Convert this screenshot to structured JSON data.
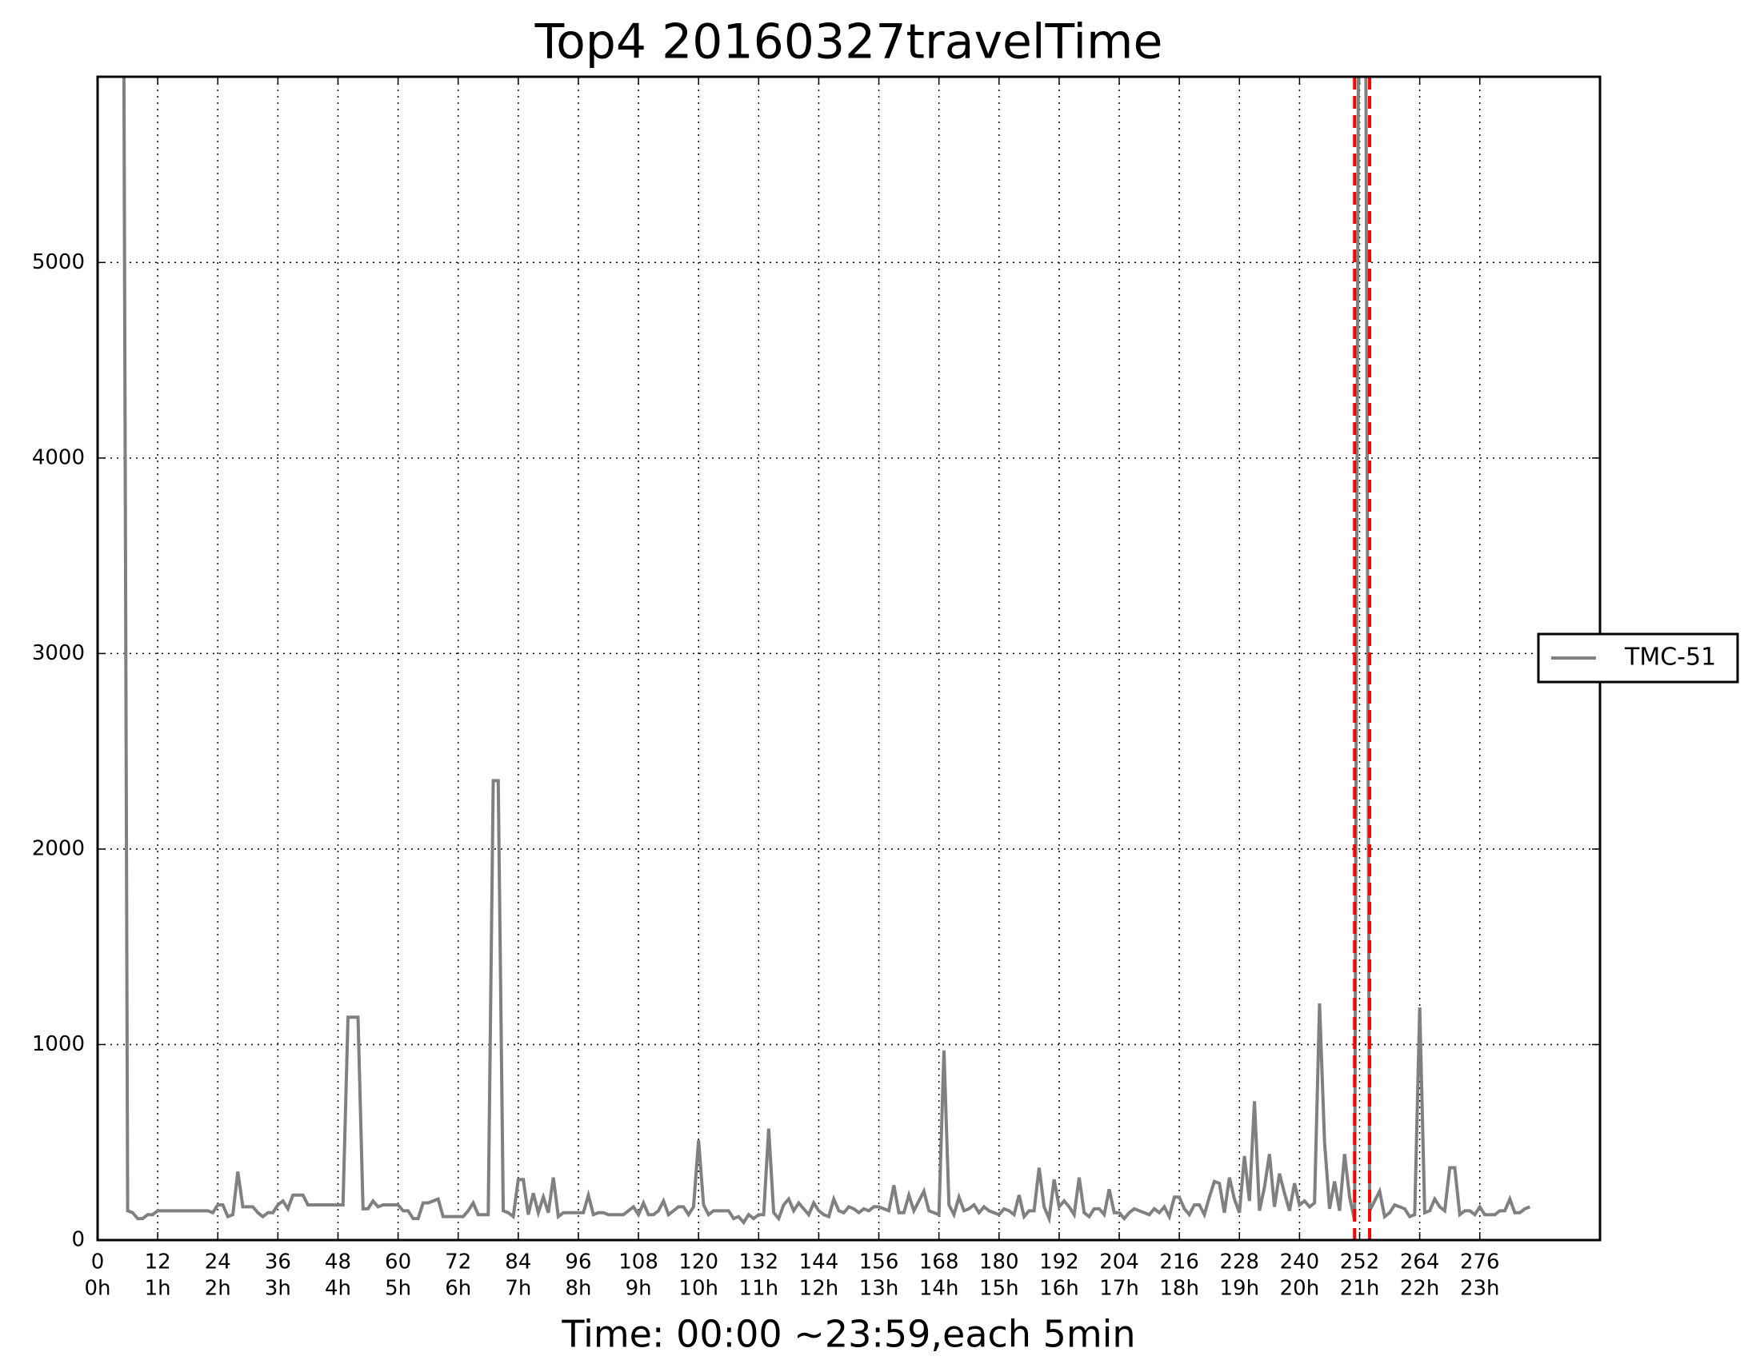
{
  "chart_data": {
    "type": "line",
    "title": "Top4 20160327travelTime",
    "x_label": "Time: 00:00 ~23:59,each 5min",
    "x": [
      0,
      1,
      2,
      3,
      4,
      5,
      6,
      7,
      8,
      9,
      10,
      11,
      12,
      13,
      14,
      15,
      16,
      17,
      18,
      19,
      20,
      21,
      22,
      23,
      24,
      25,
      26,
      27,
      28,
      29,
      30,
      31,
      32,
      33,
      34,
      35,
      36,
      37,
      38,
      39,
      40,
      41,
      42,
      43,
      44,
      45,
      46,
      47,
      48,
      49,
      50,
      51,
      52,
      53,
      54,
      55,
      56,
      57,
      58,
      59,
      60,
      61,
      62,
      63,
      64,
      65,
      66,
      67,
      68,
      69,
      70,
      71,
      72,
      73,
      74,
      75,
      76,
      77,
      78,
      79,
      80,
      81,
      82,
      83,
      84,
      85,
      86,
      87,
      88,
      89,
      90,
      91,
      92,
      93,
      94,
      95,
      96,
      97,
      98,
      99,
      100,
      101,
      102,
      103,
      104,
      105,
      106,
      107,
      108,
      109,
      110,
      111,
      112,
      113,
      114,
      115,
      116,
      117,
      118,
      119,
      120,
      121,
      122,
      123,
      124,
      125,
      126,
      127,
      128,
      129,
      130,
      131,
      132,
      133,
      134,
      135,
      136,
      137,
      138,
      139,
      140,
      141,
      142,
      143,
      144,
      145,
      146,
      147,
      148,
      149,
      150,
      151,
      152,
      153,
      154,
      155,
      156,
      157,
      158,
      159,
      160,
      161,
      162,
      163,
      164,
      165,
      166,
      167,
      168,
      169,
      170,
      171,
      172,
      173,
      174,
      175,
      176,
      177,
      178,
      179,
      180,
      181,
      182,
      183,
      184,
      185,
      186,
      187,
      188,
      189,
      190,
      191,
      192,
      193,
      194,
      195,
      196,
      197,
      198,
      199,
      200,
      201,
      202,
      203,
      204,
      205,
      206,
      207,
      208,
      209,
      210,
      211,
      212,
      213,
      214,
      215,
      216,
      217,
      218,
      219,
      220,
      221,
      222,
      223,
      224,
      225,
      226,
      227,
      228,
      229,
      230,
      231,
      232,
      233,
      234,
      235,
      236,
      237,
      238,
      239,
      240,
      241,
      242,
      243,
      244,
      245,
      246,
      247,
      248,
      249,
      250,
      251,
      252,
      253,
      254,
      255,
      256,
      257,
      258,
      259,
      260,
      261,
      262,
      263,
      264,
      265,
      266,
      267,
      268,
      269,
      270,
      271,
      272,
      273,
      274,
      275,
      276,
      277,
      278,
      279,
      280,
      281,
      282,
      283,
      284,
      285,
      286
    ],
    "series": [
      {
        "name": "TMC-51",
        "color": "#808080",
        "values": [
          null,
          null,
          null,
          null,
          null,
          8000,
          150,
          140,
          110,
          110,
          130,
          130,
          150,
          150,
          150,
          150,
          150,
          150,
          150,
          150,
          150,
          150,
          150,
          140,
          180,
          180,
          120,
          130,
          350,
          170,
          170,
          170,
          140,
          120,
          140,
          140,
          180,
          200,
          160,
          230,
          230,
          230,
          180,
          180,
          180,
          180,
          180,
          180,
          180,
          180,
          1140,
          1140,
          1140,
          160,
          160,
          200,
          170,
          180,
          180,
          180,
          180,
          150,
          150,
          110,
          110,
          190,
          190,
          200,
          210,
          120,
          120,
          120,
          120,
          120,
          150,
          190,
          130,
          130,
          130,
          2350,
          2350,
          150,
          140,
          120,
          310,
          310,
          130,
          240,
          140,
          220,
          140,
          320,
          120,
          140,
          140,
          140,
          140,
          140,
          230,
          130,
          140,
          140,
          130,
          130,
          130,
          130,
          150,
          170,
          130,
          190,
          130,
          130,
          150,
          200,
          130,
          150,
          170,
          170,
          130,
          170,
          510,
          180,
          130,
          150,
          150,
          150,
          150,
          110,
          120,
          90,
          130,
          110,
          130,
          130,
          570,
          140,
          110,
          180,
          210,
          150,
          190,
          160,
          130,
          190,
          150,
          130,
          120,
          210,
          150,
          140,
          170,
          160,
          140,
          160,
          150,
          170,
          170,
          160,
          150,
          280,
          140,
          140,
          230,
          150,
          200,
          250,
          150,
          140,
          130,
          970,
          180,
          130,
          220,
          150,
          160,
          180,
          140,
          170,
          150,
          140,
          130,
          160,
          150,
          130,
          230,
          120,
          150,
          150,
          370,
          170,
          110,
          310,
          170,
          200,
          170,
          130,
          320,
          140,
          120,
          160,
          160,
          130,
          260,
          140,
          140,
          110,
          140,
          160,
          150,
          140,
          130,
          160,
          140,
          170,
          120,
          220,
          220,
          160,
          130,
          180,
          180,
          130,
          220,
          300,
          290,
          140,
          320,
          210,
          140,
          430,
          200,
          710,
          150,
          270,
          440,
          170,
          340,
          240,
          150,
          290,
          180,
          200,
          170,
          190,
          1210,
          500,
          160,
          300,
          150,
          440,
          220,
          100,
          8000,
          8000,
          150,
          200,
          250,
          120,
          140,
          180,
          170,
          160,
          120,
          130,
          1190,
          140,
          150,
          210,
          170,
          150,
          370,
          370,
          130,
          150,
          150,
          130,
          170,
          130,
          130,
          130,
          150,
          150,
          210,
          140,
          140,
          160,
          170
        ]
      }
    ],
    "xlim": [
      0,
      300
    ],
    "ylim": [
      0,
      5950
    ],
    "xticks": [
      0,
      12,
      24,
      36,
      48,
      60,
      72,
      84,
      96,
      108,
      120,
      132,
      144,
      156,
      168,
      180,
      192,
      204,
      216,
      228,
      240,
      252,
      264,
      276
    ],
    "xtick_hours": [
      "0h",
      "1h",
      "2h",
      "3h",
      "4h",
      "5h",
      "6h",
      "7h",
      "8h",
      "9h",
      "10h",
      "11h",
      "12h",
      "13h",
      "14h",
      "15h",
      "16h",
      "17h",
      "18h",
      "19h",
      "20h",
      "21h",
      "22h",
      "23h"
    ],
    "yticks": [
      0,
      1000,
      2000,
      3000,
      4000,
      5000
    ],
    "grid": true,
    "legend": "center right outside",
    "vlines": [
      {
        "x": 251,
        "color": "#ff0000",
        "style": "dashed"
      },
      {
        "x": 254,
        "color": "#ff0000",
        "style": "dashed"
      }
    ]
  }
}
